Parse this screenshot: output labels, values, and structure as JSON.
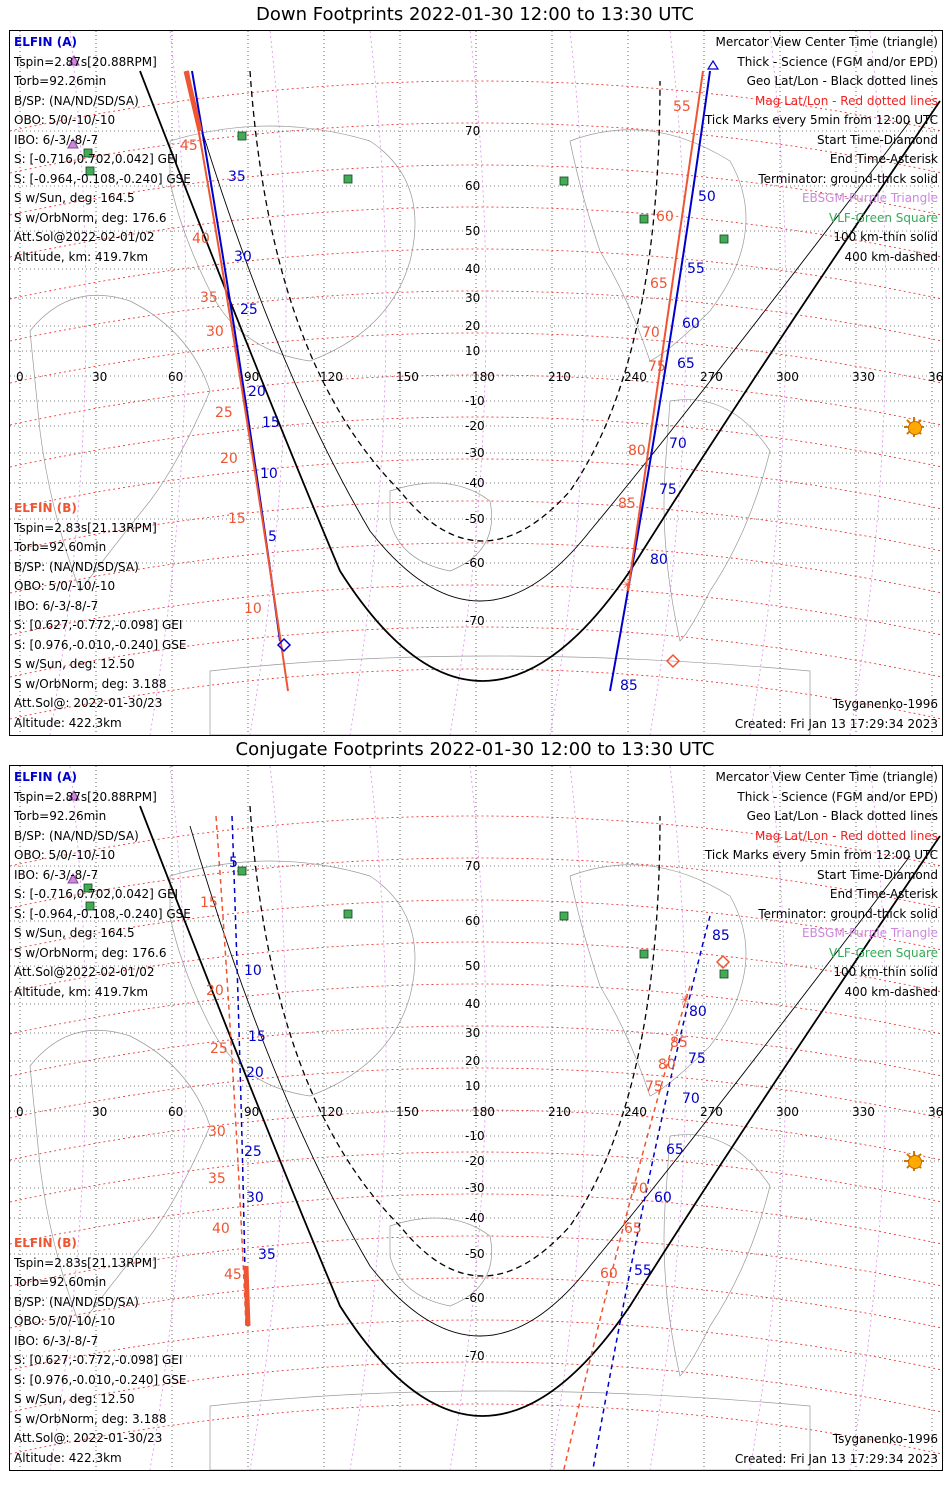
{
  "panels": [
    {
      "title": "Down Footprints 2022-01-30 12:00 to 13:30 UTC",
      "elfin_a": {
        "name": "ELFIN (A)",
        "lines": [
          "Tspin=2.87s[20.88RPM]",
          "Torb=92.26min",
          "B/SP: (NA/ND/SD/SA)",
          "OBO: 5/0/-10/-10",
          "IBO: 6/-3/-8/-7",
          "S: [-0.716,0.702,0.042] GEI",
          "S: [-0.964,-0.108,-0.240] GSE",
          "S w/Sun, deg: 164.5",
          "S w/OrbNorm, deg: 176.6",
          "Att.Sol@2022-02-01/02",
          "Altitude, km: 419.7km"
        ]
      },
      "elfin_b": {
        "name": "ELFIN (B)",
        "lines": [
          "Tspin=2.83s[21.13RPM]",
          "Torb=92.60min",
          "B/SP: (NA/ND/SD/SA)",
          "OBO: 5/0/-10/-10",
          "IBO: 6/-3/-8/-7",
          "S: [0.627,-0.772,-0.098] GEI",
          "S: [0.976,-0.010,-0.240] GSE",
          "S w/Sun, deg: 12.50",
          "S w/OrbNorm, deg: 3.188",
          "Att.Sol@: 2022-01-30/23",
          "Altitude: 422.3km"
        ]
      },
      "model": "Tsyganenko-1996",
      "created": "Created: Fri Jan 13 17:29:34 2023",
      "blue_ticks": [
        "35",
        "30",
        "25",
        "20",
        "15",
        "10",
        "5",
        "50",
        "55",
        "60",
        "65",
        "70",
        "75",
        "80",
        "85"
      ],
      "red_ticks": [
        "45",
        "40",
        "35",
        "30",
        "25",
        "20",
        "15",
        "10",
        "55",
        "60",
        "65",
        "70",
        "75",
        "80",
        "85"
      ]
    },
    {
      "title": "Conjugate Footprints 2022-01-30 12:00 to 13:30 UTC",
      "elfin_a": {
        "name": "ELFIN (A)",
        "lines": [
          "Tspin=2.87s[20.88RPM]",
          "Torb=92.26min",
          "B/SP: (NA/ND/SD/SA)",
          "OBO: 5/0/-10/-10",
          "IBO: 6/-3/-8/-7",
          "S: [-0.716,0.702,0.042] GEI",
          "S: [-0.964,-0.108,-0.240] GSE",
          "S w/Sun, deg: 164.5",
          "S w/OrbNorm, deg: 176.6",
          "Att.Sol@2022-02-01/02",
          "Altitude, km: 419.7km"
        ]
      },
      "elfin_b": {
        "name": "ELFIN (B)",
        "lines": [
          "Tspin=2.83s[21.13RPM]",
          "Torb=92.60min",
          "B/SP: (NA/ND/SD/SA)",
          "OBO: 5/0/-10/-10",
          "IBO: 6/-3/-8/-7",
          "S: [0.627,-0.772,-0.098] GEI",
          "S: [0.976,-0.010,-0.240] GSE",
          "S w/Sun, deg: 12.50",
          "S w/OrbNorm, deg: 3.188",
          "Att.Sol@: 2022-01-30/23",
          "Altitude: 422.3km"
        ]
      },
      "model": "Tsyganenko-1996",
      "created": "Created: Fri Jan 13 17:29:34 2023",
      "blue_ticks": [
        "5",
        "10",
        "15",
        "20",
        "25",
        "30",
        "35",
        "85",
        "80",
        "75",
        "70",
        "65",
        "60",
        "55"
      ],
      "red_ticks": [
        "15",
        "20",
        "25",
        "30",
        "35",
        "40",
        "45",
        "85",
        "80",
        "75",
        "70",
        "65",
        "60"
      ]
    }
  ],
  "legend": {
    "view": "Mercator View Center Time (triangle)",
    "thick": "Thick - Science (FGM and/or EPD)",
    "geo": "Geo Lat/Lon - Black dotted lines",
    "mag": "Mag Lat/Lon - Red dotted lines",
    "ticks": "Tick Marks every 5min from 12:00 UTC",
    "start": "Start Time-Diamond",
    "end": "End Time-Asterisk",
    "terminator": "Terminator: ground-thick solid",
    "ebsgm": "EBSGM-Purple Triangle",
    "vlf": "VLF-Green Square",
    "km100": "100 km-thin solid",
    "km400": "400 km-dashed"
  },
  "lon_labels": [
    "0",
    "30",
    "60",
    "90",
    "120",
    "150",
    "180",
    "210",
    "240",
    "270",
    "300",
    "330",
    "360"
  ],
  "lat_labels": [
    "70",
    "60",
    "50",
    "40",
    "30",
    "20",
    "10",
    "-10",
    "-20",
    "-30",
    "-40",
    "-50",
    "-60",
    "-70"
  ],
  "colors": {
    "probe_a": "#0000cc",
    "probe_b": "#ee5533",
    "mag_grid": "#ee2222",
    "geo_grid": "#000000",
    "ebsgm": "#cc88dd",
    "vlf": "#33aa55",
    "sun": "#ffaa00"
  }
}
